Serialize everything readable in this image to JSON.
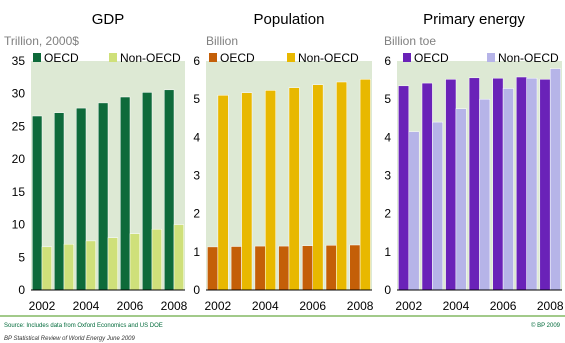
{
  "chart_data": [
    {
      "type": "bar",
      "title": "GDP",
      "ylabel": "Trillion, 2000$",
      "ylim": [
        0,
        35
      ],
      "yticks": [
        0,
        5,
        10,
        15,
        20,
        25,
        30,
        35
      ],
      "categories": [
        "2002",
        "2003",
        "2004",
        "2005",
        "2006",
        "2007",
        "2008"
      ],
      "xtick_labels": [
        "2002",
        "2004",
        "2006",
        "2008"
      ],
      "series": [
        {
          "name": "OECD",
          "color": "#0e6a3a",
          "values": [
            26.6,
            27.1,
            27.8,
            28.6,
            29.5,
            30.2,
            30.6
          ]
        },
        {
          "name": "Non-OECD",
          "color": "#cfe07a",
          "values": [
            6.6,
            7.0,
            7.5,
            8.0,
            8.6,
            9.3,
            10.0
          ]
        }
      ],
      "legend": "top"
    },
    {
      "type": "bar",
      "title": "Population",
      "ylabel": "Billion",
      "ylim": [
        0,
        6
      ],
      "yticks": [
        0,
        1,
        2,
        3,
        4,
        5,
        6
      ],
      "categories": [
        "2002",
        "2003",
        "2004",
        "2005",
        "2006",
        "2007",
        "2008"
      ],
      "xtick_labels": [
        "2002",
        "2004",
        "2006",
        "2008"
      ],
      "series": [
        {
          "name": "OECD",
          "color": "#c45f08",
          "values": [
            1.13,
            1.14,
            1.15,
            1.15,
            1.16,
            1.17,
            1.18
          ]
        },
        {
          "name": "Non-OECD",
          "color": "#e8b800",
          "values": [
            5.1,
            5.17,
            5.23,
            5.3,
            5.38,
            5.45,
            5.52
          ]
        }
      ],
      "legend": "top"
    },
    {
      "type": "bar",
      "title": "Primary energy",
      "ylabel": "Billion toe",
      "ylim": [
        0,
        6
      ],
      "yticks": [
        0,
        1,
        2,
        3,
        4,
        5,
        6
      ],
      "categories": [
        "2002",
        "2003",
        "2004",
        "2005",
        "2006",
        "2007",
        "2008"
      ],
      "xtick_labels": [
        "2002",
        "2004",
        "2006",
        "2008"
      ],
      "series": [
        {
          "name": "OECD",
          "color": "#6a22b8",
          "values": [
            5.35,
            5.42,
            5.52,
            5.56,
            5.55,
            5.58,
            5.52
          ]
        },
        {
          "name": "Non-OECD",
          "color": "#b6b4e8",
          "values": [
            4.15,
            4.4,
            4.75,
            5.0,
            5.28,
            5.55,
            5.8
          ]
        }
      ],
      "legend": "top"
    }
  ],
  "footer": {
    "source": "Source: Includes data from Oxford Economics and US DOE",
    "copyright": "© BP 2009",
    "publication": "BP Statistical Review of World Energy June 2009"
  },
  "colors": {
    "plot_background": "#dde9d4",
    "accent": "#006a3a"
  }
}
